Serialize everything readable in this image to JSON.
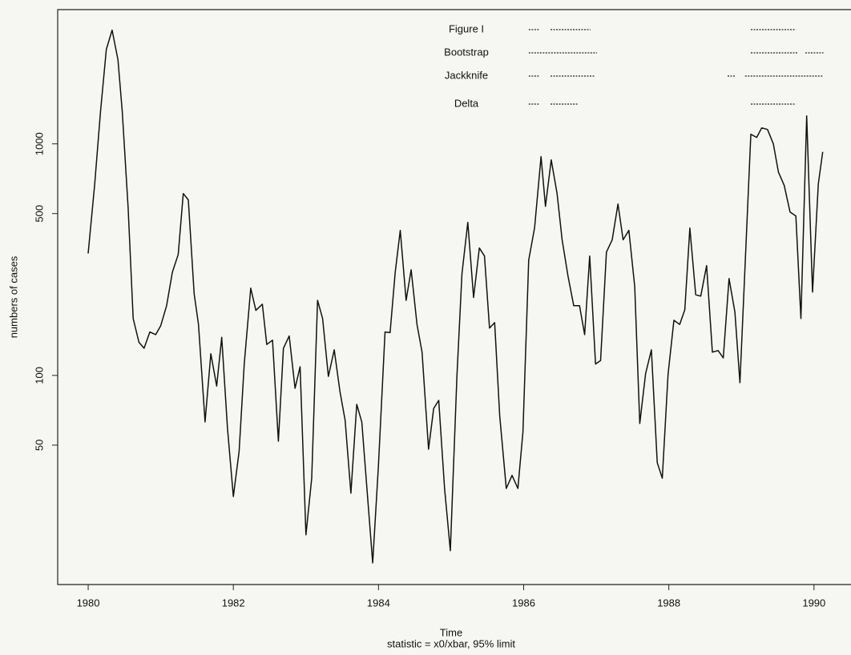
{
  "chart_data": {
    "type": "line",
    "y_label": "numbers of cases",
    "x_label": "Time",
    "subtitle": "statistic = x0/xbar, 95% limit",
    "ylog": true,
    "color": "#111111",
    "xlim": [
      1979.58,
      1990.51
    ],
    "ylim": [
      12.5,
      3800
    ],
    "xticks": [
      1980,
      1982,
      1984,
      1986,
      1988,
      1990
    ],
    "yticks": [
      50,
      100,
      500,
      1000
    ],
    "x": [
      1980.0,
      1980.09,
      1980.17,
      1980.25,
      1980.33,
      1980.41,
      1980.47,
      1980.55,
      1980.62,
      1980.7,
      1980.77,
      1980.85,
      1980.93,
      1981.0,
      1981.08,
      1981.16,
      1981.24,
      1981.31,
      1981.38,
      1981.46,
      1981.52,
      1981.61,
      1981.69,
      1981.77,
      1981.84,
      1981.92,
      1982.0,
      1982.08,
      1982.15,
      1982.24,
      1982.31,
      1982.4,
      1982.46,
      1982.54,
      1982.62,
      1982.69,
      1982.77,
      1982.85,
      1982.92,
      1983.0,
      1983.08,
      1983.16,
      1983.23,
      1983.31,
      1983.39,
      1983.47,
      1983.54,
      1983.62,
      1983.7,
      1983.77,
      1983.84,
      1983.92,
      1984.0,
      1984.09,
      1984.16,
      1984.23,
      1984.3,
      1984.38,
      1984.45,
      1984.53,
      1984.6,
      1984.69,
      1984.76,
      1984.83,
      1984.91,
      1984.99,
      1985.08,
      1985.15,
      1985.23,
      1985.31,
      1985.39,
      1985.46,
      1985.53,
      1985.6,
      1985.67,
      1985.76,
      1985.84,
      1985.92,
      1985.99,
      1986.07,
      1986.15,
      1986.24,
      1986.3,
      1986.38,
      1986.46,
      1986.53,
      1986.61,
      1986.69,
      1986.77,
      1986.84,
      1986.91,
      1986.99,
      1987.06,
      1987.14,
      1987.22,
      1987.3,
      1987.37,
      1987.45,
      1987.53,
      1987.6,
      1987.68,
      1987.76,
      1987.84,
      1987.91,
      1987.99,
      1988.07,
      1988.15,
      1988.22,
      1988.29,
      1988.37,
      1988.44,
      1988.52,
      1988.6,
      1988.68,
      1988.75,
      1988.83,
      1988.91,
      1988.98,
      1989.13,
      1989.21,
      1989.28,
      1989.36,
      1989.44,
      1989.51,
      1989.59,
      1989.67,
      1989.75,
      1989.82,
      1989.9,
      1989.98,
      1990.06,
      1990.12
    ],
    "values": [
      336,
      671,
      1375,
      2560,
      3100,
      2310,
      1375,
      529,
      176,
      139,
      131,
      154,
      150,
      164,
      200,
      279,
      333,
      610,
      573,
      225,
      166,
      63,
      124,
      90,
      146,
      59,
      30,
      47,
      112,
      238,
      191,
      203,
      136,
      142,
      52,
      131,
      148,
      88,
      109,
      20.5,
      36,
      211,
      176,
      99,
      129,
      85,
      64,
      31,
      75,
      63,
      32.5,
      15.5,
      41,
      154,
      153,
      279,
      423,
      211,
      286,
      166,
      126,
      48,
      72,
      78,
      32.5,
      17.5,
      99,
      275,
      458,
      217,
      355,
      328,
      160,
      169,
      67,
      32.5,
      37,
      32.5,
      57,
      315,
      433,
      881,
      537,
      853,
      610,
      385,
      269,
      200,
      200,
      150,
      328,
      112,
      116,
      341,
      385,
      550,
      385,
      423,
      242,
      62,
      102,
      129,
      42,
      36,
      101,
      173,
      166,
      192,
      433,
      223,
      220,
      298,
      126,
      128,
      119,
      262,
      188,
      93,
      1100,
      1066,
      1172,
      1154,
      1000,
      756,
      661,
      508,
      488,
      176,
      1321,
      229,
      671,
      923
    ],
    "annotations": [
      {
        "label": "Figure I",
        "intervals": [
          [
            1986.07,
            1986.21
          ],
          [
            1986.37,
            1986.92
          ],
          [
            1989.13,
            1989.75
          ]
        ]
      },
      {
        "label": "Bootstrap",
        "intervals": [
          [
            1986.07,
            1987.01
          ],
          [
            1989.13,
            1989.77
          ],
          [
            1989.88,
            1990.13
          ]
        ]
      },
      {
        "label": "Jackknife",
        "intervals": [
          [
            1986.07,
            1986.21
          ],
          [
            1986.37,
            1986.98
          ],
          [
            1988.81,
            1988.91
          ],
          [
            1989.05,
            1990.13
          ]
        ]
      },
      {
        "label": "Delta",
        "intervals": [
          [
            1986.07,
            1986.21
          ],
          [
            1986.37,
            1986.75
          ],
          [
            1989.13,
            1989.75
          ]
        ]
      }
    ]
  }
}
